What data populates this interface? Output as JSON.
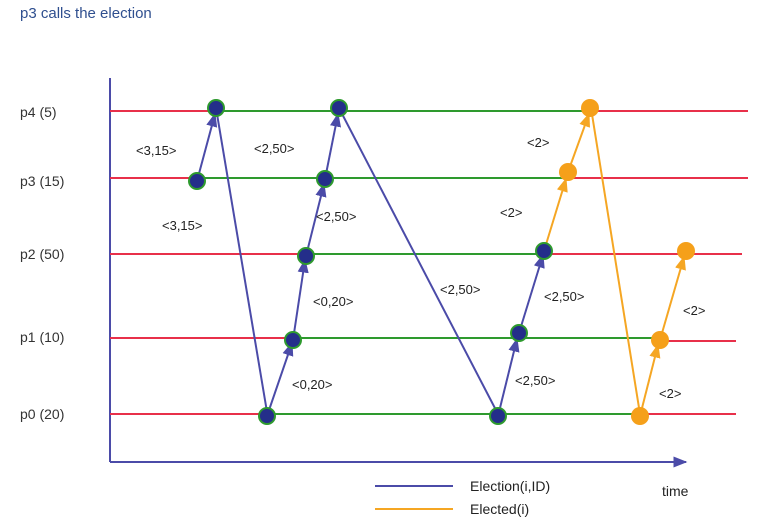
{
  "title": "p3 calls the election",
  "processes": [
    {
      "id": "p4",
      "label": "p4 (5)"
    },
    {
      "id": "p3",
      "label": "p3 (15)"
    },
    {
      "id": "p2",
      "label": "p2 (50)"
    },
    {
      "id": "p1",
      "label": "p1 (10)"
    },
    {
      "id": "p0",
      "label": "p0 (20)"
    }
  ],
  "message_labels": [
    "<3,15>",
    "<3,15>",
    "<2,50>",
    "<2,50>",
    "<0,20>",
    "<0,20>",
    "<2,50>",
    "<2,50>",
    "<2,50>",
    "<2>",
    "<2>",
    "<2>",
    "<2>"
  ],
  "time_label": "time",
  "legend": [
    {
      "label": "Election(i,ID)",
      "color": "#4b4ba8"
    },
    {
      "label": "Elected(i)",
      "color": "#f5a623"
    }
  ],
  "colors": {
    "timeline_idle": "#e8304a",
    "timeline_active": "#2e9a2e",
    "election_node": "#242e8a",
    "elected_node": "#f5a01a",
    "axis": "#4b4ba8"
  }
}
